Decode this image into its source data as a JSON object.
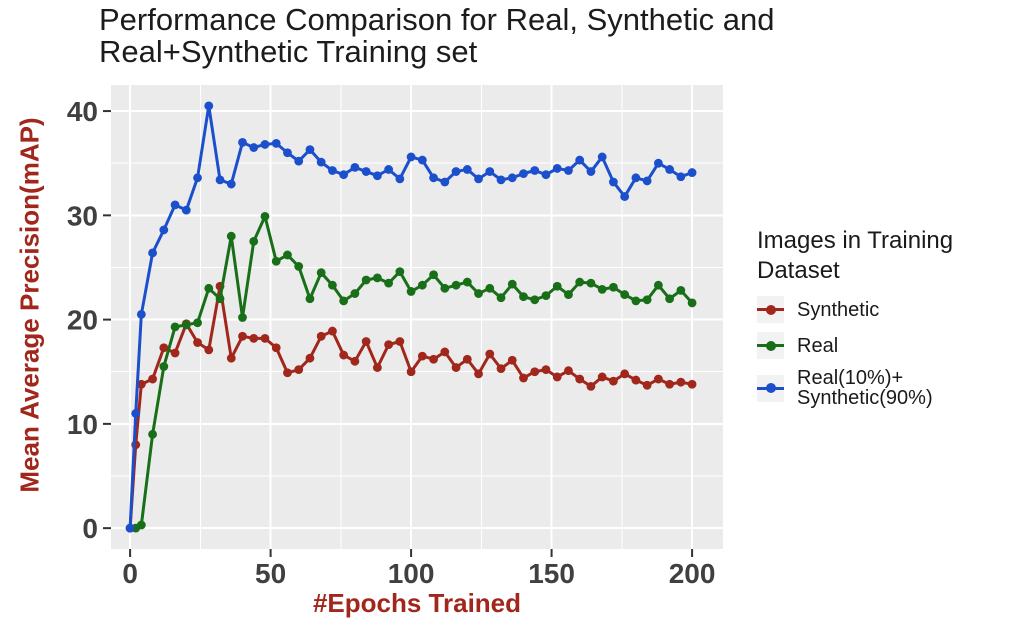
{
  "title": "Performance Comparison for Real, Synthetic and\nReal+Synthetic Training set",
  "axes": {
    "x_label": "#Epochs Trained",
    "y_label": "Mean Average Precision(mAP)",
    "axis_title_color": "#A1261B",
    "tick_label_color": "#404040",
    "tick_mark_color": "#333333"
  },
  "legend": {
    "title": "Images in Training\nDataset",
    "position": "right",
    "key_background": "#F2F2F2",
    "items": [
      {
        "label": "Synthetic",
        "color": "#A1261B"
      },
      {
        "label": "Real",
        "color": "#186F18"
      },
      {
        "label": "Real(10%)+\nSynthetic(90%)",
        "color": "#1B4FCC"
      }
    ]
  },
  "chart_data": {
    "type": "line",
    "title": "Performance Comparison for Real, Synthetic and Real+Synthetic Training set",
    "xlabel": "#Epochs Trained",
    "ylabel": "Mean Average Precision(mAP)",
    "x_ticks": [
      0,
      50,
      100,
      150,
      200
    ],
    "y_ticks": [
      0,
      10,
      20,
      30,
      40
    ],
    "xlim": [
      -6.8,
      211
    ],
    "ylim": [
      -2,
      42.5
    ],
    "grid": true,
    "panel_background": "#EBEBEB",
    "grid_color": "#FFFFFF",
    "legend_position": "right",
    "x": [
      0,
      2,
      4,
      8,
      12,
      16,
      20,
      24,
      28,
      32,
      36,
      40,
      44,
      48,
      52,
      56,
      60,
      64,
      68,
      72,
      76,
      80,
      84,
      88,
      92,
      96,
      100,
      104,
      108,
      112,
      116,
      120,
      124,
      128,
      132,
      136,
      140,
      144,
      148,
      152,
      156,
      160,
      164,
      168,
      172,
      176,
      180,
      184,
      188,
      192,
      196,
      200
    ],
    "series": [
      {
        "name": "Synthetic",
        "color": "#A1261B",
        "values": [
          0,
          8.0,
          13.8,
          14.3,
          17.3,
          16.8,
          19.6,
          17.8,
          17.1,
          23.2,
          16.3,
          18.4,
          18.2,
          18.2,
          17.3,
          14.9,
          15.2,
          16.3,
          18.4,
          18.9,
          16.6,
          16.0,
          17.9,
          15.4,
          17.6,
          17.9,
          15.0,
          16.5,
          16.2,
          16.9,
          15.4,
          16.2,
          14.8,
          16.7,
          15.3,
          16.1,
          14.4,
          15.0,
          15.2,
          14.5,
          15.1,
          14.3,
          13.6,
          14.5,
          14.1,
          14.8,
          14.2,
          13.7,
          14.3,
          13.8,
          14.0,
          13.8
        ]
      },
      {
        "name": "Real",
        "color": "#186F18",
        "values": [
          0,
          0,
          0.3,
          9.0,
          15.5,
          19.3,
          19.5,
          19.7,
          23.0,
          22.0,
          28.0,
          20.2,
          27.5,
          29.9,
          25.6,
          26.2,
          25.1,
          22.0,
          24.5,
          23.3,
          21.8,
          22.5,
          23.8,
          24.0,
          23.5,
          24.6,
          22.7,
          23.3,
          24.3,
          23.0,
          23.3,
          23.6,
          22.5,
          23.0,
          22.1,
          23.4,
          22.2,
          21.9,
          22.3,
          23.2,
          22.4,
          23.6,
          23.5,
          22.9,
          23.1,
          22.4,
          21.8,
          21.9,
          23.3,
          22.0,
          22.8,
          21.6
        ]
      },
      {
        "name": "Real(10%)+Synthetic(90%)",
        "color": "#1B4FCC",
        "values": [
          0,
          11.0,
          20.5,
          26.4,
          28.6,
          31.0,
          30.5,
          33.6,
          40.5,
          33.4,
          33.0,
          37.0,
          36.5,
          36.8,
          36.9,
          36.0,
          35.2,
          36.3,
          35.1,
          34.3,
          33.9,
          34.6,
          34.2,
          33.8,
          34.4,
          33.5,
          35.6,
          35.3,
          33.6,
          33.2,
          34.2,
          34.4,
          33.5,
          34.2,
          33.4,
          33.6,
          34.0,
          34.3,
          33.9,
          34.5,
          34.3,
          35.3,
          34.2,
          35.6,
          33.2,
          31.8,
          33.6,
          33.3,
          35.0,
          34.4,
          33.7,
          34.1
        ]
      }
    ]
  }
}
